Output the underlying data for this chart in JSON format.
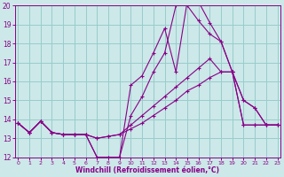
{
  "background_color": "#cce8e8",
  "grid_color": "#99cccc",
  "line_color": "#880088",
  "xlim": [
    0,
    23
  ],
  "ylim": [
    12,
    20
  ],
  "xlabel": "Windchill (Refroidissement éolien,°C)",
  "xticks": [
    0,
    1,
    2,
    3,
    4,
    5,
    6,
    7,
    8,
    9,
    10,
    11,
    12,
    13,
    14,
    15,
    16,
    17,
    18,
    19,
    20,
    21,
    22,
    23
  ],
  "yticks": [
    12,
    13,
    14,
    15,
    16,
    17,
    18,
    19,
    20
  ],
  "series": [
    [
      13.8,
      13.3,
      13.9,
      13.3,
      13.2,
      13.2,
      13.2,
      12.0,
      12.0,
      12.0,
      15.8,
      16.3,
      17.5,
      18.8,
      16.5,
      20.2,
      20.2,
      19.1,
      18.1,
      16.5,
      15.0,
      14.6,
      13.7,
      13.7
    ],
    [
      13.8,
      13.3,
      13.9,
      13.3,
      13.2,
      13.2,
      13.2,
      12.0,
      12.0,
      12.0,
      14.2,
      15.2,
      16.5,
      17.5,
      20.0,
      20.0,
      19.2,
      18.5,
      18.1,
      16.5,
      15.0,
      14.6,
      13.7,
      13.7
    ],
    [
      13.8,
      13.3,
      13.9,
      13.3,
      13.2,
      13.2,
      13.2,
      13.0,
      13.1,
      13.2,
      13.7,
      14.2,
      14.7,
      15.2,
      15.7,
      16.2,
      16.7,
      17.2,
      16.5,
      16.5,
      13.7,
      13.7,
      13.7,
      13.7
    ],
    [
      13.8,
      13.3,
      13.9,
      13.3,
      13.2,
      13.2,
      13.2,
      13.0,
      13.1,
      13.2,
      13.5,
      13.8,
      14.2,
      14.6,
      15.0,
      15.5,
      15.8,
      16.2,
      16.5,
      16.5,
      13.7,
      13.7,
      13.7,
      13.7
    ]
  ]
}
